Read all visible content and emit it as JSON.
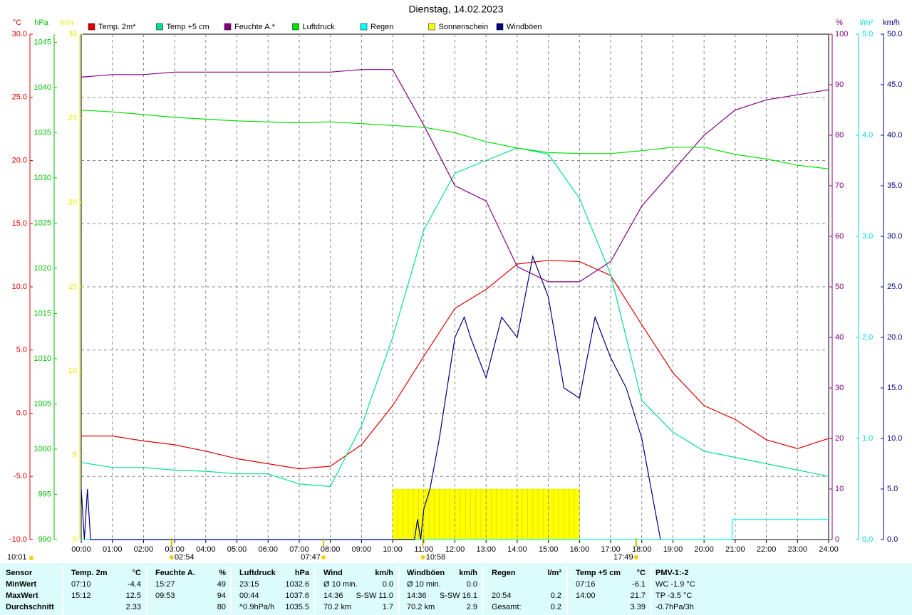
{
  "chart_data": {
    "type": "line",
    "title": "Dienstag, 14.02.2023",
    "xlim": [
      0,
      24
    ],
    "xticks": [
      {
        "value": 0,
        "label": "00:00"
      },
      {
        "value": 1,
        "label": "01:00"
      },
      {
        "value": 2,
        "label": "02:00"
      },
      {
        "value": 3,
        "label": "03:00"
      },
      {
        "value": 4,
        "label": "04:00"
      },
      {
        "value": 5,
        "label": "05:00"
      },
      {
        "value": 6,
        "label": "06:00"
      },
      {
        "value": 7,
        "label": "07:00"
      },
      {
        "value": 8,
        "label": "08:00"
      },
      {
        "value": 9,
        "label": "09:00"
      },
      {
        "value": 10,
        "label": "10:00"
      },
      {
        "value": 11,
        "label": "11:00"
      },
      {
        "value": 12,
        "label": "12:00"
      },
      {
        "value": 13,
        "label": "13:00"
      },
      {
        "value": 14,
        "label": "14:00"
      },
      {
        "value": 15,
        "label": "15:00"
      },
      {
        "value": 16,
        "label": "16:00"
      },
      {
        "value": 17,
        "label": "17:00"
      },
      {
        "value": 18,
        "label": "18:00"
      },
      {
        "value": 19,
        "label": "19:00"
      },
      {
        "value": 20,
        "label": "20:00"
      },
      {
        "value": 21,
        "label": "21:00"
      },
      {
        "value": 22,
        "label": "22:00"
      },
      {
        "value": 23,
        "label": "23:00"
      },
      {
        "value": 24,
        "label": "24:00"
      }
    ],
    "grid": true,
    "axes": [
      {
        "label": "°C",
        "color": "#e00000",
        "side": "left",
        "ylim": [
          -10,
          30
        ],
        "yticks": [
          {
            "value": -10,
            "label": "-10.0"
          },
          {
            "value": -5,
            "label": "-5.0"
          },
          {
            "value": 0,
            "label": "0.0"
          },
          {
            "value": 5,
            "label": "5.0"
          },
          {
            "value": 10,
            "label": "10.0"
          },
          {
            "value": 15,
            "label": "15.0"
          },
          {
            "value": 20,
            "label": "20.0"
          },
          {
            "value": 25,
            "label": "25.0"
          },
          {
            "value": 30,
            "label": "30.0"
          }
        ]
      },
      {
        "label": "hPa",
        "color": "#00c000",
        "side": "left",
        "ylim": [
          990,
          1045.9
        ],
        "yticks": [
          990,
          995,
          1000,
          1005,
          1010,
          1015,
          1020,
          1025,
          1030,
          1035,
          1040,
          1045
        ]
      },
      {
        "label": "min",
        "color": "#e8e800",
        "side": "left",
        "ylim": [
          0,
          30
        ],
        "yticks": [
          0,
          5,
          10,
          15,
          20,
          25,
          30
        ]
      },
      {
        "label": "%",
        "color": "#800080",
        "side": "right",
        "ylim": [
          0,
          100
        ],
        "yticks": [
          0,
          10,
          20,
          30,
          40,
          50,
          60,
          70,
          80,
          90,
          100
        ]
      },
      {
        "label": "l/m²",
        "color": "#00d8d8",
        "side": "right",
        "ylim": [
          0,
          5
        ],
        "yticks": [
          {
            "value": 0,
            "label": "0.0"
          },
          {
            "value": 1,
            "label": "1.0"
          },
          {
            "value": 2,
            "label": "2.0"
          },
          {
            "value": 3,
            "label": "3.0"
          },
          {
            "value": 4,
            "label": "4.0"
          },
          {
            "value": 5,
            "label": "5.0"
          }
        ]
      },
      {
        "label": "km/h",
        "color": "#000080",
        "side": "right",
        "ylim": [
          0,
          50
        ],
        "yticks": [
          {
            "value": 0,
            "label": "0.0"
          },
          {
            "value": 5,
            "label": "5.0"
          },
          {
            "value": 10,
            "label": "10.0"
          },
          {
            "value": 15,
            "label": "15.0"
          },
          {
            "value": 20,
            "label": "20.0"
          },
          {
            "value": 25,
            "label": "25.0"
          },
          {
            "value": 30,
            "label": "30.0"
          },
          {
            "value": 35,
            "label": "35.0"
          },
          {
            "value": 40,
            "label": "40.0"
          },
          {
            "value": 45,
            "label": "45.0"
          },
          {
            "value": 50,
            "label": "50.0"
          }
        ]
      }
    ],
    "series": [
      {
        "name": "Temp. 2m*",
        "color": "#e00000",
        "axis": 0,
        "x": [
          0,
          1,
          2,
          3,
          4,
          5,
          6,
          7,
          8,
          9,
          10,
          11,
          12,
          13,
          14,
          15,
          16,
          17,
          18,
          19,
          20,
          21,
          22,
          23,
          24
        ],
        "values": [
          -1.8,
          -1.8,
          -2.2,
          -2.5,
          -3.0,
          -3.6,
          -4.0,
          -4.4,
          -4.2,
          -2.5,
          0.6,
          4.5,
          8.3,
          9.8,
          11.8,
          12.1,
          12.0,
          10.9,
          7.0,
          3.2,
          0.6,
          -0.5,
          -2.1,
          -2.8,
          -2.0
        ]
      },
      {
        "name": "Temp +5 cm",
        "color": "#00e090",
        "axis": 0,
        "x": [
          0,
          1,
          2,
          3,
          4,
          5,
          6,
          7,
          8,
          9,
          10,
          11,
          12,
          13,
          14,
          15,
          16,
          17,
          18,
          19,
          20,
          21,
          22,
          23,
          24
        ],
        "values": [
          -3.9,
          -4.3,
          -4.3,
          -4.5,
          -4.6,
          -4.8,
          -4.8,
          -5.6,
          -5.8,
          -1.0,
          6.0,
          14.5,
          19.0,
          20.0,
          21.0,
          20.5,
          17.0,
          11.0,
          1.0,
          -1.5,
          -3.0,
          -3.5,
          -4.0,
          -4.5,
          -5.0
        ]
      },
      {
        "name": "Feuchte A.*",
        "color": "#800080",
        "axis": 3,
        "x": [
          0,
          1,
          2,
          3,
          4,
          5,
          6,
          7,
          8,
          9,
          10,
          11,
          12,
          13,
          14,
          15,
          16,
          17,
          18,
          19,
          20,
          21,
          22,
          23,
          24
        ],
        "values": [
          91.5,
          92,
          92,
          92.5,
          92.5,
          92.5,
          92.5,
          92.5,
          92.5,
          93,
          93,
          82,
          70,
          67,
          54,
          51,
          51,
          55,
          66,
          73,
          80,
          85,
          87,
          88,
          89
        ]
      },
      {
        "name": "Luftdruck",
        "color": "#00e000",
        "axis": 1,
        "x": [
          0,
          1,
          2,
          3,
          4,
          5,
          6,
          7,
          8,
          9,
          10,
          11,
          12,
          13,
          14,
          15,
          16,
          17,
          18,
          19,
          20,
          21,
          22,
          23,
          24
        ],
        "values": [
          1037.5,
          1037.3,
          1037.0,
          1036.7,
          1036.5,
          1036.3,
          1036.2,
          1036.1,
          1036.2,
          1036.0,
          1035.8,
          1035.6,
          1035.0,
          1034.0,
          1033.3,
          1032.8,
          1032.7,
          1032.7,
          1033.0,
          1033.4,
          1033.4,
          1032.6,
          1032.1,
          1031.4,
          1031.0
        ]
      },
      {
        "name": "Regen",
        "color": "#00ffff",
        "axis": 4,
        "x": [
          0,
          20.9,
          20.9,
          24
        ],
        "values": [
          0,
          0,
          0.2,
          0.2
        ]
      },
      {
        "name": "Sonnenschein",
        "color": "#ffff00",
        "axis": 2,
        "kind": "bar",
        "bins": [
          10,
          11,
          12,
          13,
          14,
          15,
          16
        ],
        "values": [
          3,
          3,
          3,
          3,
          3,
          3
        ]
      },
      {
        "name": "Windböen",
        "color": "#000080",
        "axis": 5,
        "x": [
          0,
          0.1,
          0.2,
          0.3,
          10.7,
          10.8,
          10.9,
          11.0,
          11.2,
          11.5,
          12,
          12.3,
          12.5,
          13,
          13.5,
          14,
          14.5,
          15,
          15.5,
          16,
          16.5,
          17,
          17.5,
          18,
          18.3,
          18.6
        ],
        "values": [
          5,
          0,
          5,
          0,
          0,
          2,
          0,
          3,
          5,
          10,
          20,
          22,
          20,
          16,
          22,
          20,
          28,
          24,
          15,
          14,
          22,
          18,
          15,
          10,
          5,
          0
        ]
      }
    ],
    "annotations": [
      {
        "text": "02:54",
        "x": 2.9
      },
      {
        "text": "07:47",
        "x": 7.78
      },
      {
        "text": "10:58",
        "x": 10.97
      },
      {
        "text": "17:49",
        "x": 17.82
      }
    ],
    "update_time": "10:01"
  },
  "table": {
    "header": [
      "Sensor",
      "Temp. 2m",
      "°C",
      "Feuchte A.",
      "%",
      "Luftdruck",
      "hPa",
      "Wind",
      "km/h",
      "Windböen",
      "km/h",
      "Regen",
      "l/m²",
      "Temp +5 cm",
      "°C",
      "PMV-1:-2"
    ],
    "rows": [
      [
        "MinWert",
        "07:10",
        "-4.4",
        "15:27",
        "49",
        "23:15",
        "1032.6",
        "Ø 10 min.",
        "0.0",
        "Ø 10 min.",
        "0.0",
        null,
        null,
        "07:16",
        "-6.1",
        "WC -1.9 °C"
      ],
      [
        "MaxWert",
        "15:12",
        "12.5",
        "09:53",
        "94",
        "00:44",
        "1037.6",
        "14:36",
        "S-SW 11.0",
        "14:36",
        "S-SW 16.1",
        "20:54",
        "0.2",
        "14:00",
        "21.7",
        "TP -3.5 °C"
      ],
      [
        "Durchschnitt",
        null,
        "2.33",
        null,
        "80",
        "^0.9hPa/h",
        "1035.5",
        "70.2 km",
        "1.7",
        "70.2 km",
        "2.9",
        "Gesamt:",
        "0.2",
        null,
        "3.39",
        "-0.7hPa/3h"
      ]
    ]
  }
}
